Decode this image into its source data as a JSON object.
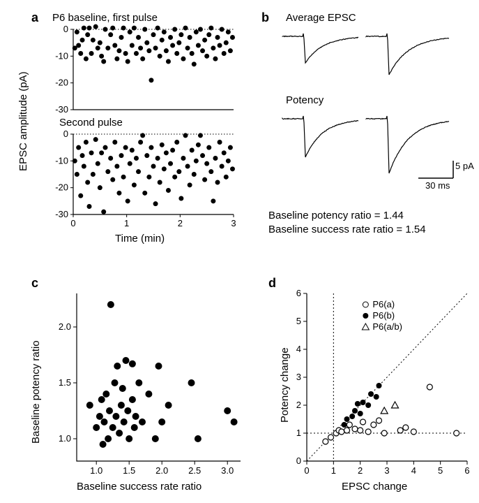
{
  "panel_a": {
    "label": "a",
    "title": "P6 baseline, first pulse",
    "subtitle": "Second pulse",
    "xlabel": "Time (min)",
    "ylabel": "EPSC amplitude (pA)",
    "xlim": [
      0,
      3
    ],
    "ylim": [
      -30,
      0
    ],
    "xticks": [
      0,
      1,
      2,
      3
    ],
    "yticks": [
      -30,
      -20,
      -10,
      0
    ],
    "marker_color": "#000000",
    "marker_size": 5,
    "first_pulse_points": [
      [
        0.03,
        -7
      ],
      [
        0.07,
        -1
      ],
      [
        0.1,
        -6
      ],
      [
        0.14,
        -9
      ],
      [
        0.17,
        -4
      ],
      [
        0.2,
        0.5
      ],
      [
        0.24,
        -11
      ],
      [
        0.27,
        -2
      ],
      [
        0.3,
        0.5
      ],
      [
        0.34,
        -9
      ],
      [
        0.37,
        -4
      ],
      [
        0.42,
        1
      ],
      [
        0.46,
        -7
      ],
      [
        0.5,
        -5
      ],
      [
        0.53,
        -10
      ],
      [
        0.57,
        -12
      ],
      [
        0.6,
        0
      ],
      [
        0.65,
        -7
      ],
      [
        0.7,
        -2
      ],
      [
        0.74,
        0.5
      ],
      [
        0.78,
        -6
      ],
      [
        0.82,
        -11
      ],
      [
        0.86,
        -8
      ],
      [
        0.9,
        -3
      ],
      [
        0.94,
        0.5
      ],
      [
        0.98,
        -9
      ],
      [
        1.02,
        -12
      ],
      [
        1.06,
        -1
      ],
      [
        1.1,
        -6
      ],
      [
        1.14,
        0.5
      ],
      [
        1.18,
        -9
      ],
      [
        1.22,
        -3
      ],
      [
        1.26,
        -7
      ],
      [
        1.3,
        -11
      ],
      [
        1.34,
        0
      ],
      [
        1.38,
        -5
      ],
      [
        1.42,
        -8
      ],
      [
        1.46,
        -19
      ],
      [
        1.5,
        -2
      ],
      [
        1.54,
        -7
      ],
      [
        1.58,
        0.5
      ],
      [
        1.62,
        -10
      ],
      [
        1.66,
        -4
      ],
      [
        1.7,
        -1
      ],
      [
        1.74,
        -8
      ],
      [
        1.78,
        -12
      ],
      [
        1.82,
        -3
      ],
      [
        1.86,
        -6
      ],
      [
        1.9,
        0
      ],
      [
        1.94,
        -9
      ],
      [
        1.98,
        -5
      ],
      [
        2.02,
        -2
      ],
      [
        2.06,
        -11
      ],
      [
        2.1,
        0.5
      ],
      [
        2.14,
        -7
      ],
      [
        2.18,
        -3
      ],
      [
        2.22,
        -9
      ],
      [
        2.26,
        -13
      ],
      [
        2.3,
        -1
      ],
      [
        2.34,
        -6
      ],
      [
        2.38,
        0
      ],
      [
        2.42,
        -8
      ],
      [
        2.46,
        -4
      ],
      [
        2.5,
        -10
      ],
      [
        2.54,
        -2
      ],
      [
        2.58,
        0.5
      ],
      [
        2.62,
        -7
      ],
      [
        2.66,
        -11
      ],
      [
        2.7,
        -3
      ],
      [
        2.74,
        -6
      ],
      [
        2.78,
        0
      ],
      [
        2.82,
        -9
      ],
      [
        2.86,
        -5
      ],
      [
        2.9,
        -1
      ],
      [
        2.94,
        -8
      ],
      [
        2.98,
        -3
      ]
    ],
    "second_pulse_points": [
      [
        0.03,
        -10
      ],
      [
        0.07,
        -15
      ],
      [
        0.1,
        -5
      ],
      [
        0.14,
        -23
      ],
      [
        0.17,
        -8
      ],
      [
        0.2,
        -12
      ],
      [
        0.24,
        -3
      ],
      [
        0.27,
        -18
      ],
      [
        0.3,
        -27
      ],
      [
        0.34,
        -7
      ],
      [
        0.37,
        -15
      ],
      [
        0.42,
        -2
      ],
      [
        0.46,
        -11
      ],
      [
        0.5,
        -20
      ],
      [
        0.53,
        -7
      ],
      [
        0.57,
        -29
      ],
      [
        0.6,
        -5
      ],
      [
        0.65,
        -14
      ],
      [
        0.7,
        -9
      ],
      [
        0.74,
        -17
      ],
      [
        0.78,
        -3
      ],
      [
        0.82,
        -12
      ],
      [
        0.86,
        -22
      ],
      [
        0.9,
        -8
      ],
      [
        0.94,
        -16
      ],
      [
        0.98,
        -5
      ],
      [
        1.02,
        -25
      ],
      [
        1.06,
        -11
      ],
      [
        1.1,
        -6
      ],
      [
        1.14,
        -19
      ],
      [
        1.18,
        -9
      ],
      [
        1.22,
        -14
      ],
      [
        1.26,
        -3
      ],
      [
        1.3,
        -0.5
      ],
      [
        1.34,
        -22
      ],
      [
        1.38,
        -8
      ],
      [
        1.42,
        -16
      ],
      [
        1.46,
        -5
      ],
      [
        1.5,
        -12
      ],
      [
        1.54,
        -26
      ],
      [
        1.58,
        -9
      ],
      [
        1.62,
        -18
      ],
      [
        1.66,
        -4
      ],
      [
        1.7,
        -13
      ],
      [
        1.74,
        -7
      ],
      [
        1.78,
        -21
      ],
      [
        1.82,
        -11
      ],
      [
        1.86,
        -6
      ],
      [
        1.9,
        -16
      ],
      [
        1.94,
        -3
      ],
      [
        1.98,
        -14
      ],
      [
        2.02,
        -24
      ],
      [
        2.06,
        -9
      ],
      [
        2.1,
        -0.5
      ],
      [
        2.14,
        -12
      ],
      [
        2.18,
        -19
      ],
      [
        2.22,
        -6
      ],
      [
        2.26,
        -15
      ],
      [
        2.3,
        -10
      ],
      [
        2.34,
        -4
      ],
      [
        2.38,
        -0.5
      ],
      [
        2.42,
        -8
      ],
      [
        2.46,
        -17
      ],
      [
        2.5,
        -11
      ],
      [
        2.54,
        -5
      ],
      [
        2.58,
        -14
      ],
      [
        2.62,
        -25
      ],
      [
        2.66,
        -9
      ],
      [
        2.7,
        -18
      ],
      [
        2.74,
        -3
      ],
      [
        2.78,
        -12
      ],
      [
        2.82,
        -7
      ],
      [
        2.86,
        -16
      ],
      [
        2.9,
        -10
      ],
      [
        2.94,
        -5
      ],
      [
        2.98,
        -13
      ]
    ]
  },
  "panel_b": {
    "label": "b",
    "title": "Average EPSC",
    "subtitle": "Potency",
    "scale_x_label": "30 ms",
    "scale_y_label": "5 pA",
    "text1": "Baseline potency ratio = 1.44",
    "text2": "Baseline success rate ratio = 1.54",
    "trace_color": "#000000"
  },
  "panel_c": {
    "label": "c",
    "xlabel": "Baseline success rate ratio",
    "ylabel": "Baseline potency ratio",
    "xlim": [
      0.7,
      3.2
    ],
    "ylim": [
      0.8,
      2.3
    ],
    "xticks": [
      1.0,
      1.5,
      2.0,
      2.5,
      3.0
    ],
    "yticks": [
      1.0,
      1.5,
      2.0
    ],
    "marker_color": "#000000",
    "marker_size": 6,
    "points": [
      [
        0.9,
        1.3
      ],
      [
        1.0,
        1.1
      ],
      [
        1.05,
        1.2
      ],
      [
        1.08,
        1.35
      ],
      [
        1.1,
        0.95
      ],
      [
        1.12,
        1.15
      ],
      [
        1.15,
        1.4
      ],
      [
        1.18,
        1.0
      ],
      [
        1.2,
        1.25
      ],
      [
        1.22,
        2.2
      ],
      [
        1.25,
        1.1
      ],
      [
        1.28,
        1.5
      ],
      [
        1.3,
        1.2
      ],
      [
        1.32,
        1.65
      ],
      [
        1.35,
        1.05
      ],
      [
        1.38,
        1.3
      ],
      [
        1.4,
        1.45
      ],
      [
        1.42,
        1.15
      ],
      [
        1.45,
        1.7
      ],
      [
        1.48,
        1.25
      ],
      [
        1.5,
        1.0
      ],
      [
        1.55,
        1.35
      ],
      [
        1.55,
        1.67
      ],
      [
        1.58,
        1.1
      ],
      [
        1.6,
        1.2
      ],
      [
        1.65,
        1.5
      ],
      [
        1.7,
        1.15
      ],
      [
        1.8,
        1.4
      ],
      [
        1.9,
        1.0
      ],
      [
        1.95,
        1.65
      ],
      [
        2.0,
        1.15
      ],
      [
        2.1,
        1.3
      ],
      [
        2.45,
        1.5
      ],
      [
        2.55,
        1.0
      ],
      [
        3.0,
        1.25
      ],
      [
        3.1,
        1.15
      ]
    ]
  },
  "panel_d": {
    "label": "d",
    "xlabel": "EPSC change",
    "ylabel": "Potency change",
    "xlim": [
      0,
      6
    ],
    "ylim": [
      0,
      6
    ],
    "xticks": [
      0,
      1,
      2,
      3,
      4,
      5,
      6
    ],
    "yticks": [
      0,
      1,
      2,
      3,
      4,
      5,
      6
    ],
    "legend": {
      "open": "P6(a)",
      "filled": "P6(b)",
      "triangle": "P6(a/b)"
    },
    "marker_size": 5,
    "open_points": [
      [
        0.7,
        0.7
      ],
      [
        0.9,
        0.85
      ],
      [
        1.1,
        1.0
      ],
      [
        1.2,
        1.1
      ],
      [
        1.3,
        1.05
      ],
      [
        1.5,
        1.1
      ],
      [
        1.6,
        1.3
      ],
      [
        1.8,
        1.15
      ],
      [
        2.0,
        1.1
      ],
      [
        2.1,
        1.4
      ],
      [
        2.3,
        1.05
      ],
      [
        2.5,
        1.3
      ],
      [
        2.7,
        1.45
      ],
      [
        2.9,
        1.0
      ],
      [
        3.5,
        1.1
      ],
      [
        3.7,
        1.2
      ],
      [
        4.0,
        1.05
      ],
      [
        4.6,
        2.65
      ],
      [
        5.6,
        1.0
      ]
    ],
    "filled_points": [
      [
        1.4,
        1.3
      ],
      [
        1.5,
        1.5
      ],
      [
        1.7,
        1.6
      ],
      [
        1.8,
        1.8
      ],
      [
        2.0,
        1.7
      ],
      [
        2.1,
        2.1
      ],
      [
        2.3,
        2.0
      ],
      [
        2.4,
        2.4
      ],
      [
        2.6,
        2.3
      ],
      [
        2.7,
        2.7
      ],
      [
        1.9,
        2.05
      ]
    ],
    "triangle_points": [
      [
        2.9,
        1.8
      ],
      [
        3.3,
        2.0
      ]
    ],
    "ref_line_color": "#000000",
    "ref_line_dash": "2,3"
  },
  "colors": {
    "axis": "#000000",
    "text": "#000000",
    "bg": "#ffffff"
  },
  "fonts": {
    "label_size": 18,
    "axis_size": 15,
    "tick_size": 13
  }
}
